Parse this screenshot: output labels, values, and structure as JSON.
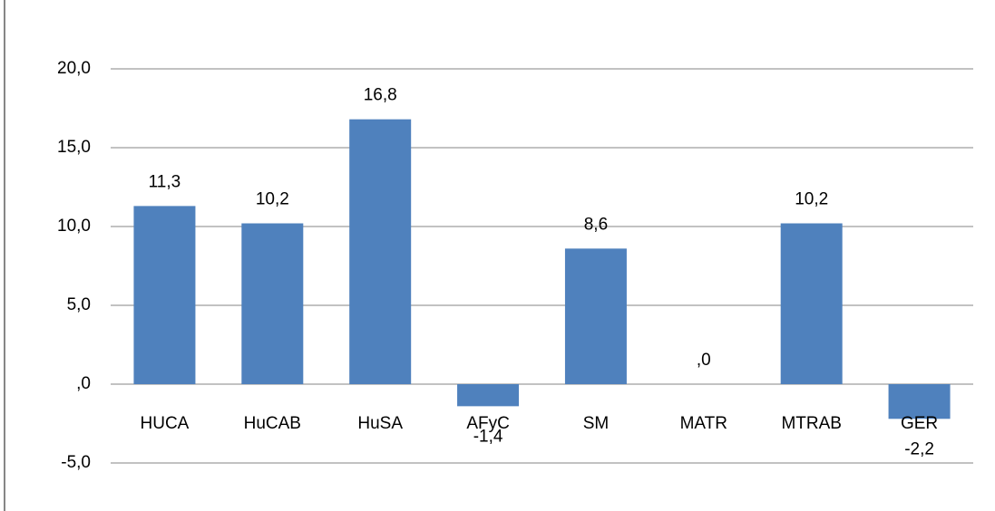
{
  "chart_data": {
    "type": "bar",
    "categories": [
      "HUCA",
      "HuCAB",
      "HuSA",
      "AFyC",
      "SM",
      "MATR",
      "MTRAB",
      "GER"
    ],
    "values": [
      11.3,
      10.2,
      16.8,
      -1.4,
      8.6,
      0,
      10.2,
      -2.2
    ],
    "value_labels": [
      "11,3",
      "10,2",
      "16,8",
      "-1,4",
      "8,6",
      ",0",
      "10,2",
      "-2,2"
    ],
    "color": "#4f81bd",
    "ylim": [
      -5,
      20
    ],
    "yticks": [
      {
        "value": -5,
        "label": "-5,0"
      },
      {
        "value": 0,
        "label": ",0"
      },
      {
        "value": 5,
        "label": "5,0"
      },
      {
        "value": 10,
        "label": "10,0"
      },
      {
        "value": 15,
        "label": "15,0"
      },
      {
        "value": 20,
        "label": "20,0"
      }
    ],
    "grid": true
  }
}
